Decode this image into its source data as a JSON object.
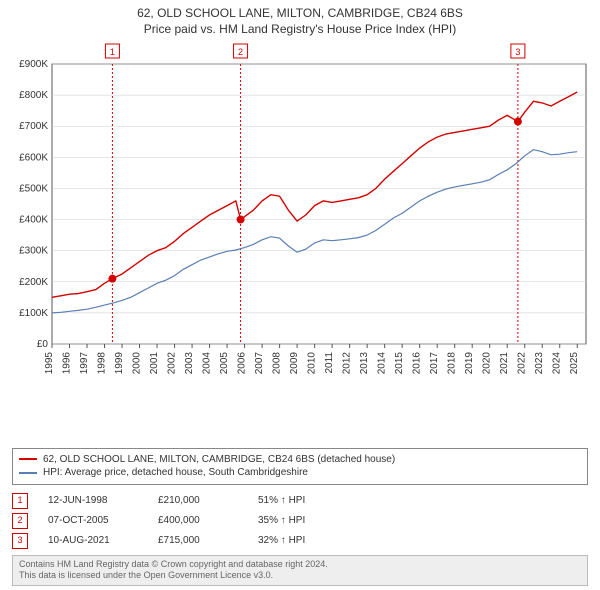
{
  "title_line1": "62, OLD SCHOOL LANE, MILTON, CAMBRIDGE, CB24 6BS",
  "title_line2": "Price paid vs. HM Land Registry's House Price Index (HPI)",
  "chart": {
    "type": "line",
    "background_color": "#ffffff",
    "grid_color": "#cccccc",
    "x_axis": {
      "min": 1995,
      "max": 2025.5,
      "ticks": [
        1995,
        1996,
        1997,
        1998,
        1999,
        2000,
        2001,
        2002,
        2003,
        2004,
        2005,
        2006,
        2007,
        2008,
        2009,
        2010,
        2011,
        2012,
        2013,
        2014,
        2015,
        2016,
        2017,
        2018,
        2019,
        2020,
        2021,
        2022,
        2023,
        2024,
        2025
      ]
    },
    "y_axis": {
      "min": 0,
      "max": 900000,
      "tick_step": 100000,
      "tick_labels": [
        "£0",
        "£100K",
        "£200K",
        "£300K",
        "£400K",
        "£500K",
        "£600K",
        "£700K",
        "£800K",
        "£900K"
      ]
    },
    "series": [
      {
        "id": "property",
        "label": "62, OLD SCHOOL LANE, MILTON, CAMBRIDGE, CB24 6BS (detached house)",
        "color": "#d40000",
        "line_width": 1.4,
        "points": [
          [
            1995.0,
            150000
          ],
          [
            1995.5,
            155000
          ],
          [
            1996.0,
            160000
          ],
          [
            1996.5,
            162000
          ],
          [
            1997.0,
            168000
          ],
          [
            1997.5,
            175000
          ],
          [
            1998.0,
            195000
          ],
          [
            1998.45,
            210000
          ],
          [
            1999.0,
            225000
          ],
          [
            1999.5,
            245000
          ],
          [
            2000.0,
            265000
          ],
          [
            2000.5,
            285000
          ],
          [
            2001.0,
            300000
          ],
          [
            2001.5,
            310000
          ],
          [
            2002.0,
            330000
          ],
          [
            2002.5,
            355000
          ],
          [
            2003.0,
            375000
          ],
          [
            2003.5,
            395000
          ],
          [
            2004.0,
            415000
          ],
          [
            2004.5,
            430000
          ],
          [
            2005.0,
            445000
          ],
          [
            2005.5,
            460000
          ],
          [
            2005.77,
            400000
          ],
          [
            2006.5,
            430000
          ],
          [
            2007.0,
            460000
          ],
          [
            2007.5,
            480000
          ],
          [
            2008.0,
            475000
          ],
          [
            2008.5,
            430000
          ],
          [
            2009.0,
            395000
          ],
          [
            2009.5,
            415000
          ],
          [
            2010.0,
            445000
          ],
          [
            2010.5,
            460000
          ],
          [
            2011.0,
            455000
          ],
          [
            2011.5,
            460000
          ],
          [
            2012.0,
            465000
          ],
          [
            2012.5,
            470000
          ],
          [
            2013.0,
            480000
          ],
          [
            2013.5,
            500000
          ],
          [
            2014.0,
            530000
          ],
          [
            2014.5,
            555000
          ],
          [
            2015.0,
            580000
          ],
          [
            2015.5,
            605000
          ],
          [
            2016.0,
            630000
          ],
          [
            2016.5,
            650000
          ],
          [
            2017.0,
            665000
          ],
          [
            2017.5,
            675000
          ],
          [
            2018.0,
            680000
          ],
          [
            2018.5,
            685000
          ],
          [
            2019.0,
            690000
          ],
          [
            2019.5,
            695000
          ],
          [
            2020.0,
            700000
          ],
          [
            2020.5,
            720000
          ],
          [
            2021.0,
            735000
          ],
          [
            2021.61,
            715000
          ],
          [
            2022.0,
            745000
          ],
          [
            2022.5,
            780000
          ],
          [
            2023.0,
            775000
          ],
          [
            2023.5,
            765000
          ],
          [
            2024.0,
            780000
          ],
          [
            2024.5,
            795000
          ],
          [
            2025.0,
            810000
          ]
        ]
      },
      {
        "id": "hpi",
        "label": "HPI: Average price, detached house, South Cambridgeshire",
        "color": "#5a7fb5",
        "line_width": 1.2,
        "points": [
          [
            1995.0,
            100000
          ],
          [
            1995.5,
            102000
          ],
          [
            1996.0,
            105000
          ],
          [
            1996.5,
            108000
          ],
          [
            1997.0,
            112000
          ],
          [
            1997.5,
            118000
          ],
          [
            1998.0,
            125000
          ],
          [
            1998.5,
            132000
          ],
          [
            1999.0,
            140000
          ],
          [
            1999.5,
            150000
          ],
          [
            2000.0,
            165000
          ],
          [
            2000.5,
            180000
          ],
          [
            2001.0,
            195000
          ],
          [
            2001.5,
            205000
          ],
          [
            2002.0,
            220000
          ],
          [
            2002.5,
            240000
          ],
          [
            2003.0,
            255000
          ],
          [
            2003.5,
            270000
          ],
          [
            2004.0,
            280000
          ],
          [
            2004.5,
            290000
          ],
          [
            2005.0,
            298000
          ],
          [
            2005.5,
            302000
          ],
          [
            2006.0,
            310000
          ],
          [
            2006.5,
            320000
          ],
          [
            2007.0,
            335000
          ],
          [
            2007.5,
            345000
          ],
          [
            2008.0,
            340000
          ],
          [
            2008.5,
            315000
          ],
          [
            2009.0,
            295000
          ],
          [
            2009.5,
            305000
          ],
          [
            2010.0,
            325000
          ],
          [
            2010.5,
            335000
          ],
          [
            2011.0,
            332000
          ],
          [
            2011.5,
            335000
          ],
          [
            2012.0,
            338000
          ],
          [
            2012.5,
            342000
          ],
          [
            2013.0,
            350000
          ],
          [
            2013.5,
            365000
          ],
          [
            2014.0,
            385000
          ],
          [
            2014.5,
            405000
          ],
          [
            2015.0,
            420000
          ],
          [
            2015.5,
            440000
          ],
          [
            2016.0,
            460000
          ],
          [
            2016.5,
            475000
          ],
          [
            2017.0,
            488000
          ],
          [
            2017.5,
            498000
          ],
          [
            2018.0,
            505000
          ],
          [
            2018.5,
            510000
          ],
          [
            2019.0,
            515000
          ],
          [
            2019.5,
            520000
          ],
          [
            2020.0,
            528000
          ],
          [
            2020.5,
            545000
          ],
          [
            2021.0,
            560000
          ],
          [
            2021.5,
            580000
          ],
          [
            2022.0,
            605000
          ],
          [
            2022.5,
            625000
          ],
          [
            2023.0,
            618000
          ],
          [
            2023.5,
            608000
          ],
          [
            2024.0,
            610000
          ],
          [
            2024.5,
            615000
          ],
          [
            2025.0,
            618000
          ]
        ]
      }
    ],
    "event_markers": [
      {
        "num": "1",
        "x": 1998.45,
        "y": 210000
      },
      {
        "num": "2",
        "x": 2005.77,
        "y": 400000
      },
      {
        "num": "3",
        "x": 2021.61,
        "y": 715000
      }
    ],
    "event_line_color": "#d40000",
    "marker_border_color": "#d40000",
    "marker_text_color": "#d40000"
  },
  "events": [
    {
      "num": "1",
      "date": "12-JUN-1998",
      "price": "£210,000",
      "pct": "51% ↑ HPI"
    },
    {
      "num": "2",
      "date": "07-OCT-2005",
      "price": "£400,000",
      "pct": "35% ↑ HPI"
    },
    {
      "num": "3",
      "date": "10-AUG-2021",
      "price": "£715,000",
      "pct": "32% ↑ HPI"
    }
  ],
  "footer_line1": "Contains HM Land Registry data © Crown copyright and database right 2024.",
  "footer_line2": "This data is licensed under the Open Government Licence v3.0."
}
